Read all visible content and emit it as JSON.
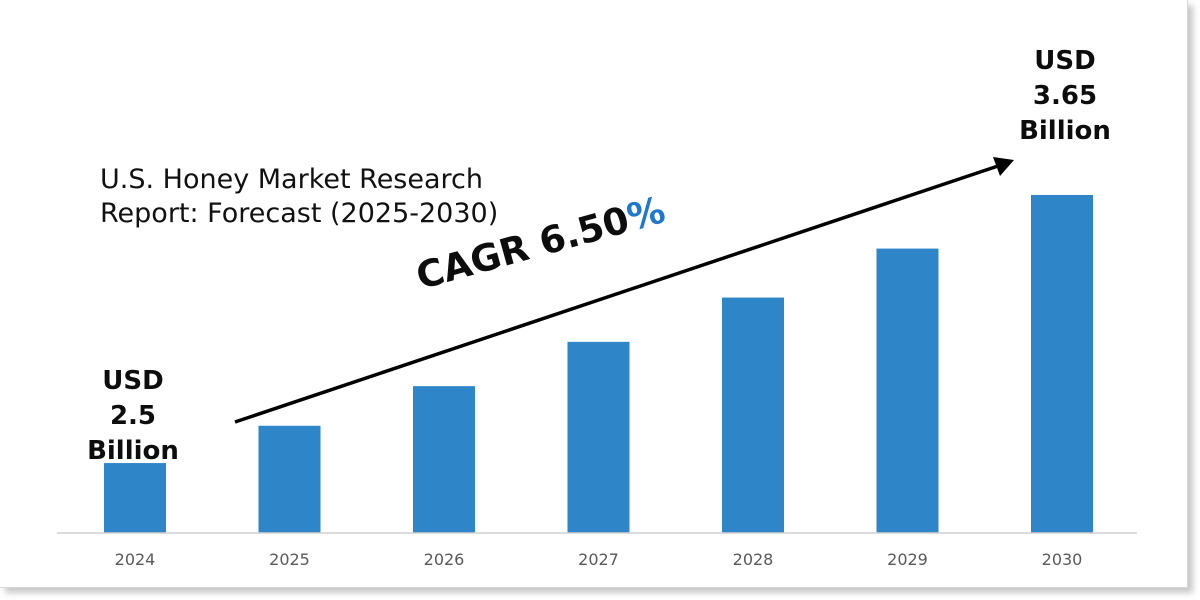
{
  "chart_data": {
    "type": "bar",
    "title": "U.S. Honey Market Research\nReport: Forecast (2025-2030)",
    "categories": [
      "2024",
      "2025",
      "2026",
      "2027",
      "2028",
      "2029",
      "2030"
    ],
    "values": [
      2.5,
      2.66,
      2.83,
      3.02,
      3.21,
      3.42,
      3.65
    ],
    "ylim": [
      2.2,
      3.8
    ],
    "grid": false,
    "bar_color": "#2e86c9",
    "annotations": {
      "start": {
        "line1": "USD",
        "line2": "2.5",
        "line3": "Billion"
      },
      "end": {
        "line1": "USD",
        "line2": "3.65",
        "line3": "Billion"
      },
      "cagr_label": "CAGR 6.50",
      "cagr_symbol": "%"
    }
  }
}
